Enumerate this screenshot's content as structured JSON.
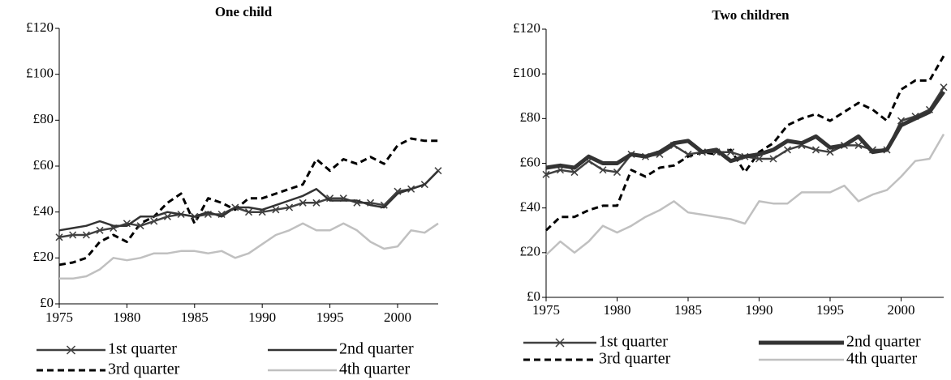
{
  "chart_data": [
    {
      "type": "line",
      "title": "One child",
      "x": [
        1975,
        1976,
        1977,
        1978,
        1979,
        1980,
        1981,
        1982,
        1983,
        1984,
        1985,
        1986,
        1987,
        1988,
        1989,
        1990,
        1991,
        1992,
        1993,
        1994,
        1995,
        1996,
        1997,
        1998,
        1999,
        2000,
        2001,
        2002,
        2003
      ],
      "xlim": [
        1975,
        2003
      ],
      "xticks": [
        1975,
        1980,
        1985,
        1990,
        1995,
        2000
      ],
      "ylim": [
        0,
        120
      ],
      "yticks": [
        {
          "value": 0,
          "label": "£0"
        },
        {
          "value": 20,
          "label": "£20"
        },
        {
          "value": 40,
          "label": "£40"
        },
        {
          "value": 60,
          "label": "£60"
        },
        {
          "value": 80,
          "label": "£80"
        },
        {
          "value": 100,
          "label": "£100"
        },
        {
          "value": 120,
          "label": "£120"
        }
      ],
      "series": [
        {
          "name": "1st quarter",
          "color": "#404040",
          "width": 2.5,
          "marker": "x",
          "dash": false,
          "values": [
            29,
            30,
            30,
            32,
            33,
            35,
            34,
            36,
            38,
            39,
            38,
            39,
            39,
            42,
            40,
            40,
            41,
            42,
            44,
            44,
            46,
            46,
            44,
            44,
            43,
            49,
            50,
            52,
            58
          ]
        },
        {
          "name": "2nd quarter",
          "color": "#333333",
          "width": 2.5,
          "marker": "none",
          "dash": false,
          "values": [
            32,
            33,
            34,
            36,
            34,
            34,
            38,
            38,
            40,
            39,
            38,
            40,
            38,
            42,
            42,
            41,
            43,
            45,
            47,
            50,
            45,
            45,
            45,
            43,
            42,
            48,
            50,
            52,
            58
          ]
        },
        {
          "name": "3rd quarter",
          "color": "#000000",
          "width": 3,
          "marker": "none",
          "dash": true,
          "values": [
            17,
            18,
            20,
            27,
            30,
            27,
            35,
            38,
            44,
            48,
            35,
            46,
            44,
            41,
            46,
            46,
            48,
            50,
            52,
            63,
            58,
            63,
            61,
            64,
            61,
            69,
            72,
            71,
            71
          ]
        },
        {
          "name": "4th quarter",
          "color": "#c0c0c0",
          "width": 2.5,
          "marker": "none",
          "dash": false,
          "values": [
            11,
            11,
            12,
            15,
            20,
            19,
            20,
            22,
            22,
            23,
            23,
            22,
            23,
            20,
            22,
            26,
            30,
            32,
            35,
            32,
            32,
            35,
            32,
            27,
            24,
            25,
            32,
            31,
            35
          ]
        }
      ]
    },
    {
      "type": "line",
      "title": "Two children",
      "x": [
        1975,
        1976,
        1977,
        1978,
        1979,
        1980,
        1981,
        1982,
        1983,
        1984,
        1985,
        1986,
        1987,
        1988,
        1989,
        1990,
        1991,
        1992,
        1993,
        1994,
        1995,
        1996,
        1997,
        1998,
        1999,
        2000,
        2001,
        2002,
        2003
      ],
      "xlim": [
        1975,
        2003
      ],
      "xticks": [
        1975,
        1980,
        1985,
        1990,
        1995,
        2000
      ],
      "ylim": [
        0,
        120
      ],
      "yticks": [
        {
          "value": 0,
          "label": "£0"
        },
        {
          "value": 20,
          "label": "£20"
        },
        {
          "value": 40,
          "label": "£40"
        },
        {
          "value": 60,
          "label": "£60"
        },
        {
          "value": 80,
          "label": "£80"
        },
        {
          "value": 100,
          "label": "£100"
        },
        {
          "value": 120,
          "label": "£120"
        }
      ],
      "series": [
        {
          "name": "1st quarter",
          "color": "#404040",
          "width": 2.5,
          "marker": "x",
          "dash": false,
          "values": [
            55,
            57,
            56,
            61,
            57,
            56,
            64,
            63,
            64,
            68,
            64,
            65,
            65,
            65,
            63,
            62,
            62,
            66,
            68,
            66,
            65,
            68,
            68,
            66,
            66,
            79,
            81,
            84,
            94
          ]
        },
        {
          "name": "2nd quarter",
          "color": "#333333",
          "width": 5,
          "marker": "none",
          "dash": false,
          "values": [
            58,
            59,
            58,
            63,
            60,
            60,
            64,
            63,
            65,
            69,
            70,
            65,
            66,
            61,
            63,
            64,
            66,
            70,
            69,
            72,
            67,
            68,
            72,
            65,
            66,
            77,
            80,
            83,
            92
          ]
        },
        {
          "name": "3rd quarter",
          "color": "#000000",
          "width": 3,
          "marker": "none",
          "dash": true,
          "values": [
            30,
            36,
            36,
            39,
            41,
            41,
            57,
            54,
            58,
            59,
            63,
            65,
            64,
            66,
            56,
            65,
            69,
            77,
            80,
            82,
            79,
            83,
            87,
            84,
            79,
            93,
            97,
            97,
            108
          ]
        },
        {
          "name": "4th quarter",
          "color": "#c0c0c0",
          "width": 2.5,
          "marker": "none",
          "dash": false,
          "values": [
            19,
            25,
            20,
            25,
            32,
            29,
            32,
            36,
            39,
            43,
            38,
            37,
            36,
            35,
            33,
            43,
            42,
            42,
            47,
            47,
            47,
            50,
            43,
            46,
            48,
            54,
            61,
            62,
            73
          ]
        }
      ]
    }
  ]
}
